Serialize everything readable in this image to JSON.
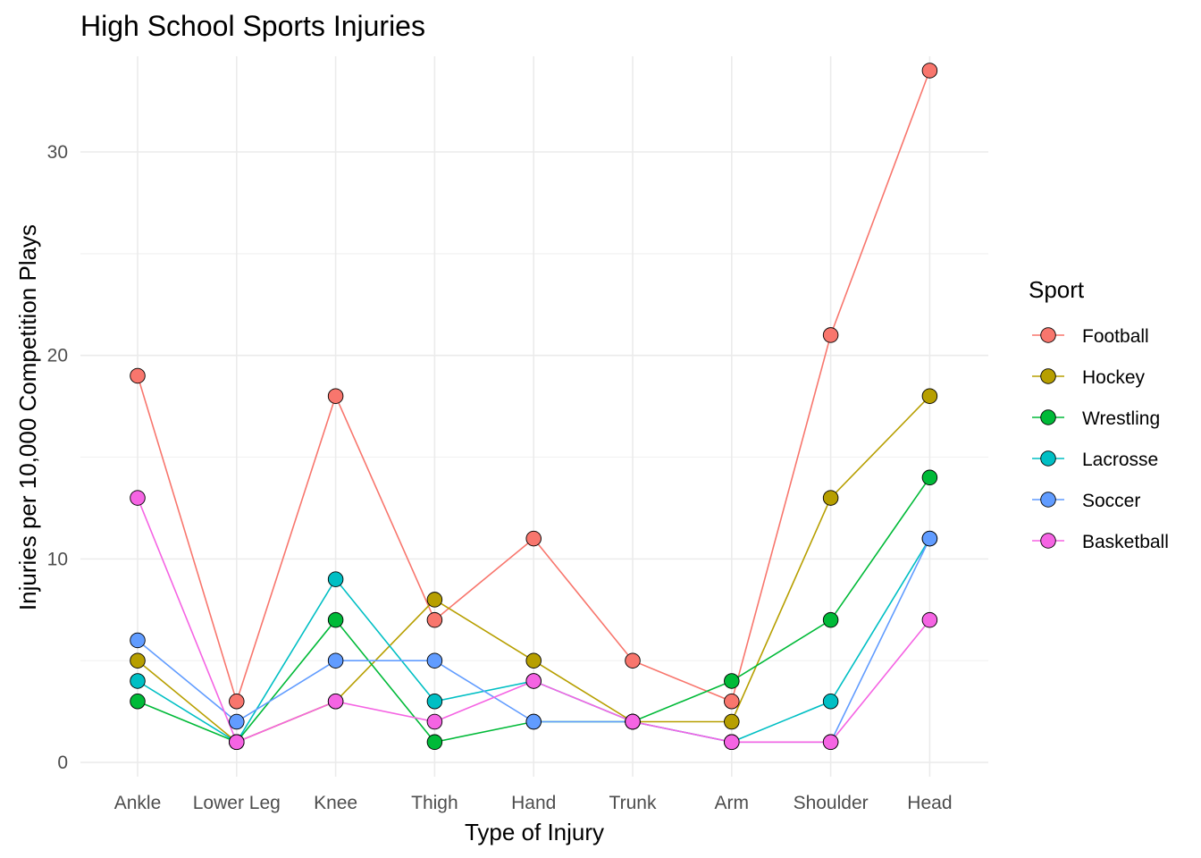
{
  "chart_data": {
    "type": "line",
    "title": "High School Sports Injuries",
    "xlabel": "Type of Injury",
    "ylabel": "Injuries per 10,000 Competition Plays",
    "categories": [
      "Ankle",
      "Lower Leg",
      "Knee",
      "Thigh",
      "Hand",
      "Trunk",
      "Arm",
      "Shoulder",
      "Head"
    ],
    "ylim": [
      -0.7,
      34.7
    ],
    "yticks": [
      0,
      10,
      20,
      30
    ],
    "grid": true,
    "legend": {
      "title": "Sport",
      "position": "right"
    },
    "series": [
      {
        "name": "Football",
        "color": "#F8766D",
        "values": [
          19,
          3,
          18,
          7,
          11,
          5,
          3,
          21,
          34
        ]
      },
      {
        "name": "Hockey",
        "color": "#B79F00",
        "values": [
          5,
          1,
          3,
          8,
          5,
          2,
          2,
          13,
          18
        ]
      },
      {
        "name": "Wrestling",
        "color": "#00BA38",
        "values": [
          3,
          1,
          7,
          1,
          2,
          2,
          4,
          7,
          14
        ]
      },
      {
        "name": "Lacrosse",
        "color": "#00BFC4",
        "values": [
          4,
          1,
          9,
          3,
          4,
          2,
          1,
          3,
          11
        ]
      },
      {
        "name": "Soccer",
        "color": "#619CFF",
        "values": [
          6,
          2,
          5,
          5,
          2,
          2,
          1,
          1,
          11
        ]
      },
      {
        "name": "Basketball",
        "color": "#F564E3",
        "values": [
          13,
          1,
          3,
          2,
          4,
          2,
          1,
          1,
          7
        ]
      }
    ]
  }
}
